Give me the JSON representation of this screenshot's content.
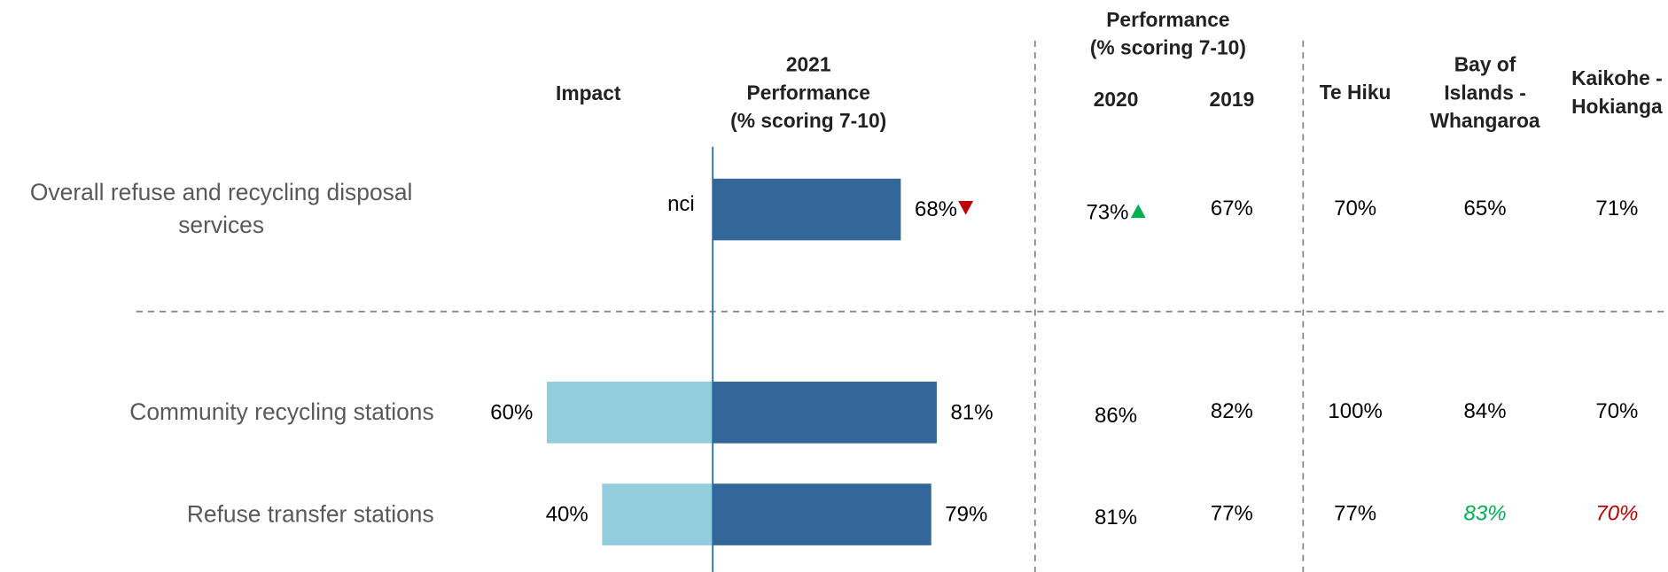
{
  "chart_data": {
    "type": "diverging_bar_table",
    "row_labels": [
      "Overall refuse and recycling disposal services",
      "Community recycling stations",
      "Refuse transfer stations"
    ],
    "headers": {
      "impact": "Impact",
      "current": [
        "2021",
        "Performance",
        "(% scoring 7-10)"
      ],
      "previous_group": [
        "Performance",
        "(% scoring 7-10)"
      ]
    },
    "impact": {
      "color": "#92cddd",
      "values": [
        null,
        60,
        40
      ],
      "value_labels": [
        "nci",
        "60%",
        "40%"
      ]
    },
    "performance": {
      "color": "#336699",
      "values": [
        68,
        81,
        79
      ],
      "value_labels": [
        "68%",
        "81%",
        "79%"
      ],
      "trend": [
        "down",
        null,
        null
      ]
    },
    "columns": [
      {
        "name": [
          "2020"
        ],
        "values": [
          73,
          86,
          81
        ],
        "value_labels": [
          "73%",
          "86%",
          "81%"
        ],
        "trend": [
          "up",
          null,
          null
        ]
      },
      {
        "name": [
          "2019"
        ],
        "values": [
          67,
          82,
          77
        ],
        "value_labels": [
          "67%",
          "82%",
          "77%"
        ]
      },
      {
        "name": [
          "Te Hiku"
        ],
        "values": [
          70,
          100,
          77
        ],
        "value_labels": [
          "70%",
          "100%",
          "77%"
        ]
      },
      {
        "name": [
          "Bay of",
          "Islands -",
          "Whangaroa"
        ],
        "values": [
          65,
          84,
          83
        ],
        "value_labels": [
          "65%",
          "84%",
          "83%"
        ],
        "significance": [
          null,
          null,
          "higher"
        ]
      },
      {
        "name": [
          "Kaikohe -",
          "Hokianga"
        ],
        "values": [
          71,
          70,
          70
        ],
        "value_labels": [
          "71%",
          "70%",
          "70%"
        ],
        "significance": [
          null,
          null,
          "lower"
        ]
      }
    ],
    "trend_colors": {
      "up": "#00b050",
      "down": "#c00000"
    },
    "significance_colors": {
      "higher": "#00b050",
      "lower": "#c00000"
    }
  }
}
